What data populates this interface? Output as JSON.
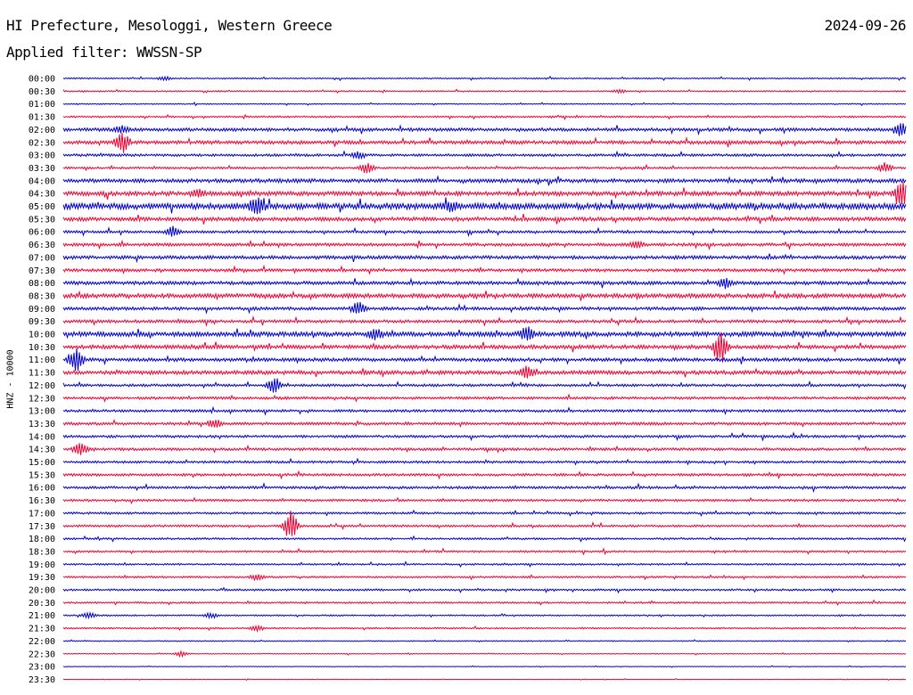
{
  "header": {
    "title": "HI Prefecture, Mesologgi, Western Greece",
    "date": "2024-09-26",
    "filter_text": "Applied filter: WWSSN-SP"
  },
  "chart_data": {
    "type": "line",
    "ylabel": "HNZ - 10000",
    "colors": [
      "#0000cc",
      "#ee0033"
    ],
    "rows": [
      "00:00",
      "00:30",
      "01:00",
      "01:30",
      "02:00",
      "02:30",
      "03:00",
      "03:30",
      "04:00",
      "04:30",
      "05:00",
      "05:30",
      "06:00",
      "06:30",
      "07:00",
      "07:30",
      "08:00",
      "08:30",
      "09:00",
      "09:30",
      "10:00",
      "10:30",
      "11:00",
      "11:30",
      "12:00",
      "12:30",
      "13:00",
      "13:30",
      "14:00",
      "14:30",
      "15:00",
      "15:30",
      "16:00",
      "16:30",
      "17:00",
      "17:30",
      "18:00",
      "18:30",
      "19:00",
      "19:30",
      "20:00",
      "20:30",
      "21:00",
      "21:30",
      "22:00",
      "22:30",
      "23:00",
      "23:30"
    ],
    "noise": [
      0.6,
      0.6,
      0.5,
      0.8,
      1.5,
      1.6,
      1.2,
      1.0,
      1.8,
      2.0,
      2.8,
      1.8,
      1.2,
      1.4,
      1.6,
      1.4,
      1.6,
      2.0,
      1.5,
      1.4,
      2.2,
      1.8,
      1.6,
      1.8,
      1.2,
      1.2,
      1.2,
      1.3,
      1.2,
      1.2,
      1.1,
      1.2,
      1.2,
      1.1,
      1.0,
      1.0,
      0.9,
      0.9,
      0.8,
      0.9,
      0.9,
      0.8,
      0.7,
      0.7,
      0.5,
      0.4,
      0.3,
      0.3
    ],
    "events": [
      {
        "row": 4,
        "t": 0.07,
        "amp": 4
      },
      {
        "row": 4,
        "t": 0.995,
        "amp": 8
      },
      {
        "row": 5,
        "t": 0.07,
        "amp": 12
      },
      {
        "row": 6,
        "t": 0.35,
        "amp": 4
      },
      {
        "row": 7,
        "t": 0.36,
        "amp": 6
      },
      {
        "row": 7,
        "t": 0.975,
        "amp": 6
      },
      {
        "row": 9,
        "t": 0.16,
        "amp": 4
      },
      {
        "row": 9,
        "t": 0.995,
        "amp": 14
      },
      {
        "row": 10,
        "t": 0.23,
        "amp": 10
      },
      {
        "row": 10,
        "t": 0.46,
        "amp": 5
      },
      {
        "row": 12,
        "t": 0.13,
        "amp": 6
      },
      {
        "row": 13,
        "t": 0.68,
        "amp": 4
      },
      {
        "row": 18,
        "t": 0.35,
        "amp": 8
      },
      {
        "row": 16,
        "t": 0.785,
        "amp": 6
      },
      {
        "row": 20,
        "t": 0.37,
        "amp": 6
      },
      {
        "row": 20,
        "t": 0.55,
        "amp": 8
      },
      {
        "row": 21,
        "t": 0.78,
        "amp": 20
      },
      {
        "row": 22,
        "t": 0.015,
        "amp": 14
      },
      {
        "row": 23,
        "t": 0.55,
        "amp": 7
      },
      {
        "row": 24,
        "t": 0.25,
        "amp": 10
      },
      {
        "row": 27,
        "t": 0.18,
        "amp": 5
      },
      {
        "row": 29,
        "t": 0.02,
        "amp": 8
      },
      {
        "row": 35,
        "t": 0.27,
        "amp": 18
      },
      {
        "row": 39,
        "t": 0.23,
        "amp": 3
      },
      {
        "row": 42,
        "t": 0.03,
        "amp": 3
      },
      {
        "row": 42,
        "t": 0.175,
        "amp": 3
      },
      {
        "row": 43,
        "t": 0.23,
        "amp": 3
      },
      {
        "row": 45,
        "t": 0.14,
        "amp": 3
      },
      {
        "row": 1,
        "t": 0.66,
        "amp": 2
      },
      {
        "row": 0,
        "t": 0.12,
        "amp": 2
      }
    ]
  }
}
